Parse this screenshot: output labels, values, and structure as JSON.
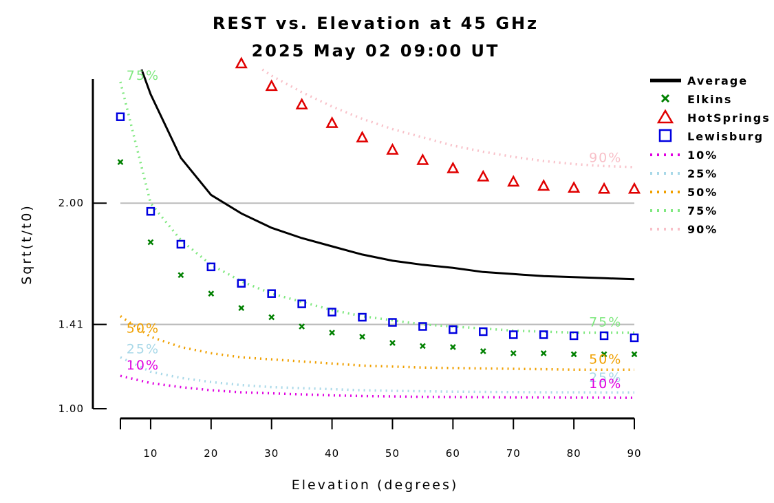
{
  "chart_data": {
    "type": "scatter",
    "title_line1": "REST vs. Elevation at 45 GHz",
    "title_line2": "2025 May 02 09:00 UT",
    "xlabel": "Elevation (degrees)",
    "ylabel": "Sqrt(t/t0)",
    "xlim": [
      5,
      90
    ],
    "ylim": [
      1.0,
      2.65
    ],
    "x_ticks": [
      10,
      20,
      30,
      40,
      50,
      60,
      70,
      80,
      90
    ],
    "y_ticks": [
      {
        "value": 1.0,
        "label": "1.00"
      },
      {
        "value": 1.41,
        "label": "1.41"
      },
      {
        "value": 2.0,
        "label": "2.00"
      }
    ],
    "reference_lines": [
      1.41,
      2.0
    ],
    "legend_position": "right",
    "series": [
      {
        "name": "Average",
        "style": "line",
        "color": "#000000",
        "x": [
          8.5,
          10,
          15,
          20,
          25,
          30,
          35,
          40,
          45,
          50,
          55,
          60,
          65,
          70,
          75,
          80,
          85,
          90
        ],
        "y": [
          2.65,
          2.53,
          2.22,
          2.04,
          1.95,
          1.88,
          1.83,
          1.79,
          1.75,
          1.72,
          1.7,
          1.685,
          1.665,
          1.655,
          1.645,
          1.64,
          1.635,
          1.63
        ]
      },
      {
        "name": "Elkins",
        "style": "x",
        "color": "#008000",
        "x": [
          5,
          10,
          15,
          20,
          25,
          30,
          35,
          40,
          45,
          50,
          55,
          60,
          65,
          70,
          75,
          80,
          85,
          90
        ],
        "y": [
          2.2,
          1.81,
          1.65,
          1.56,
          1.49,
          1.445,
          1.4,
          1.37,
          1.35,
          1.32,
          1.305,
          1.3,
          1.28,
          1.27,
          1.27,
          1.265,
          1.265,
          1.265
        ]
      },
      {
        "name": "HotSprings",
        "style": "triangle",
        "color": "#e00000",
        "x": [
          25,
          30,
          35,
          40,
          45,
          50,
          55,
          60,
          65,
          70,
          75,
          80,
          85,
          90
        ],
        "y": [
          2.68,
          2.57,
          2.48,
          2.39,
          2.32,
          2.26,
          2.21,
          2.17,
          2.13,
          2.105,
          2.085,
          2.075,
          2.07,
          2.07
        ]
      },
      {
        "name": "Lewisburg",
        "style": "square",
        "color": "#0000e0",
        "x": [
          5,
          10,
          15,
          20,
          25,
          30,
          35,
          40,
          45,
          50,
          55,
          60,
          65,
          70,
          75,
          80,
          85,
          90
        ],
        "y": [
          2.42,
          1.96,
          1.8,
          1.69,
          1.61,
          1.56,
          1.51,
          1.47,
          1.445,
          1.42,
          1.4,
          1.385,
          1.375,
          1.36,
          1.36,
          1.355,
          1.355,
          1.345
        ]
      },
      {
        "name": "10%",
        "style": "dotted",
        "color": "#e000e0",
        "x": [
          5,
          10,
          15,
          20,
          25,
          30,
          35,
          40,
          45,
          50,
          55,
          60,
          65,
          70,
          75,
          80,
          85,
          90
        ],
        "y": [
          1.16,
          1.125,
          1.105,
          1.09,
          1.08,
          1.075,
          1.07,
          1.065,
          1.062,
          1.06,
          1.058,
          1.057,
          1.056,
          1.055,
          1.055,
          1.054,
          1.054,
          1.053
        ]
      },
      {
        "name": "25%",
        "style": "dotted",
        "color": "#a8d8e8",
        "x": [
          5,
          10,
          15,
          20,
          25,
          30,
          35,
          40,
          45,
          50,
          55,
          60,
          65,
          70,
          75,
          80,
          85,
          90
        ],
        "y": [
          1.25,
          1.18,
          1.15,
          1.13,
          1.115,
          1.105,
          1.1,
          1.095,
          1.09,
          1.087,
          1.085,
          1.083,
          1.082,
          1.081,
          1.08,
          1.08,
          1.079,
          1.079
        ]
      },
      {
        "name": "50%",
        "style": "dotted",
        "color": "#f0a000",
        "x": [
          5,
          10,
          15,
          20,
          25,
          30,
          35,
          40,
          45,
          50,
          55,
          60,
          65,
          70,
          75,
          80,
          85,
          90
        ],
        "y": [
          1.45,
          1.35,
          1.3,
          1.27,
          1.25,
          1.24,
          1.23,
          1.22,
          1.21,
          1.205,
          1.2,
          1.198,
          1.196,
          1.194,
          1.192,
          1.19,
          1.19,
          1.19
        ]
      },
      {
        "name": "75%",
        "style": "dotted",
        "color": "#80e880",
        "x": [
          5,
          10,
          15,
          20,
          25,
          30,
          35,
          40,
          45,
          50,
          55,
          60,
          65,
          70,
          75,
          80,
          85,
          90
        ],
        "y": [
          2.59,
          2.0,
          1.82,
          1.7,
          1.62,
          1.56,
          1.52,
          1.48,
          1.45,
          1.43,
          1.41,
          1.4,
          1.39,
          1.38,
          1.375,
          1.37,
          1.37,
          1.37
        ]
      },
      {
        "name": "90%",
        "style": "dotted",
        "color": "#f8c0c8",
        "x": [
          28.5,
          30,
          35,
          40,
          45,
          50,
          55,
          60,
          65,
          70,
          75,
          80,
          85,
          90
        ],
        "y": [
          2.65,
          2.62,
          2.54,
          2.47,
          2.41,
          2.36,
          2.32,
          2.28,
          2.25,
          2.225,
          2.205,
          2.19,
          2.18,
          2.175
        ]
      }
    ],
    "annotations": [
      {
        "text": "75%",
        "color": "#80e880",
        "x": 6,
        "y": 2.6
      },
      {
        "text": "50%",
        "color": "#f0a000",
        "x": 6,
        "y": 1.37
      },
      {
        "text": "25%",
        "color": "#a8d8e8",
        "x": 6,
        "y": 1.27
      },
      {
        "text": "10%",
        "color": "#e000e0",
        "x": 6,
        "y": 1.19
      },
      {
        "text": "90%",
        "color": "#f8c0c8",
        "x": 82.5,
        "y": 2.2
      },
      {
        "text": "75%",
        "color": "#80e880",
        "x": 82.5,
        "y": 1.4
      },
      {
        "text": "50%",
        "color": "#f0a000",
        "x": 82.5,
        "y": 1.22
      },
      {
        "text": "25%",
        "color": "#a8d8e8",
        "x": 82.5,
        "y": 1.13
      },
      {
        "text": "10%",
        "color": "#e000e0",
        "x": 82.5,
        "y": 1.1
      }
    ]
  }
}
